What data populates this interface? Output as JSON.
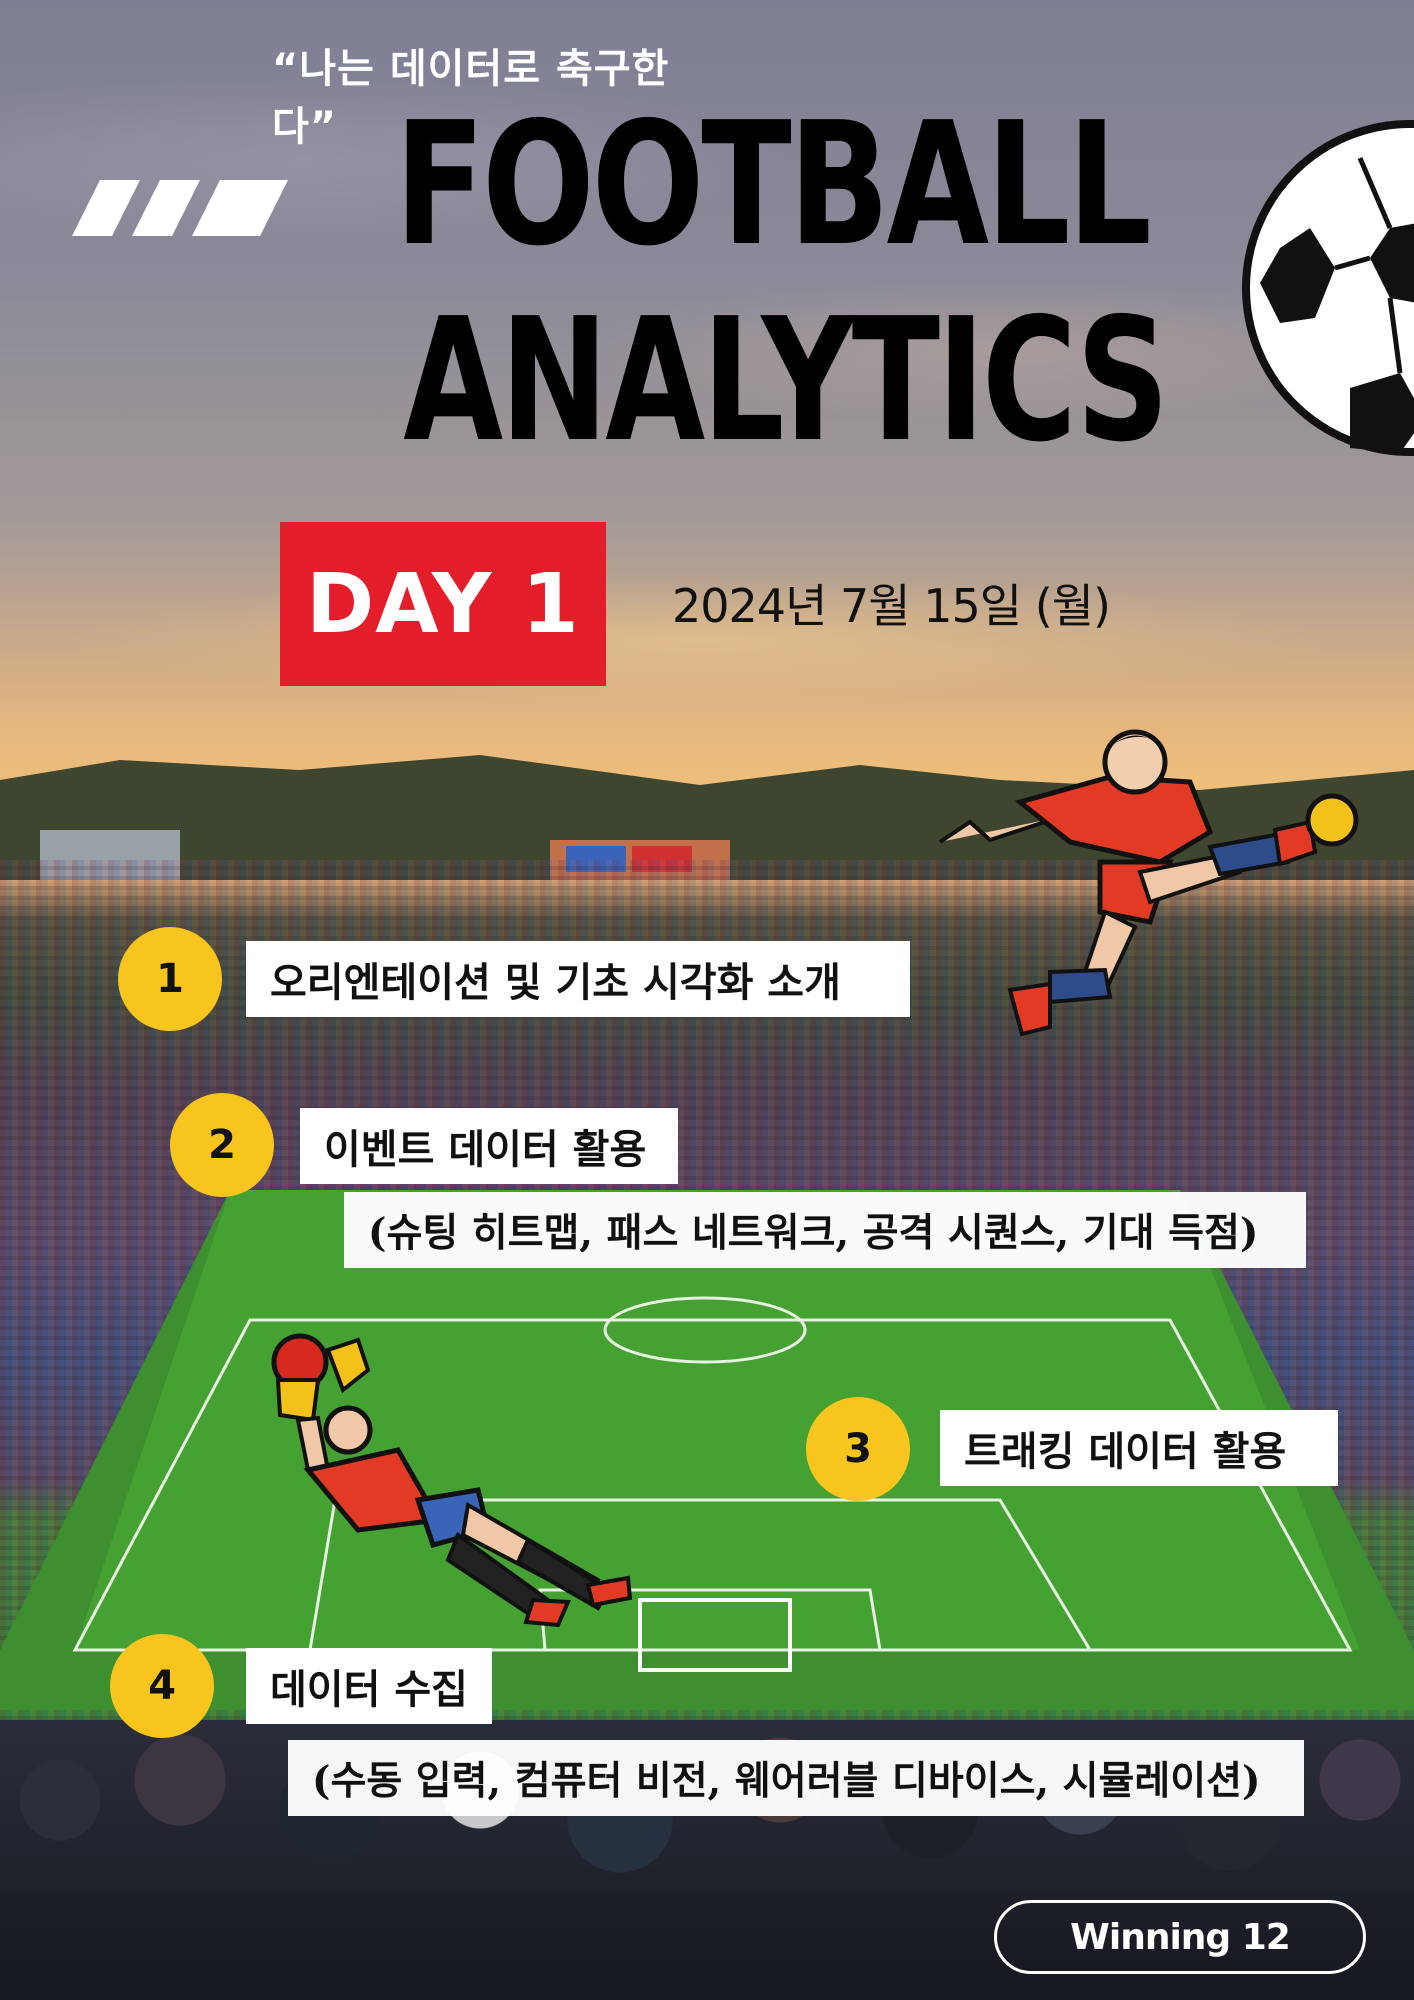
{
  "poster": {
    "tagline": "“나는 데이터로 축구한다”",
    "title_line1": "FOOTBALL",
    "title_line2": "ANALYTICS",
    "day_label": "DAY 1",
    "date": "2024년 7월 15일 (월)",
    "brand": "Winning 12"
  },
  "agenda": [
    {
      "number": "1",
      "title": "오리엔테이션 및 기초 시각화 소개"
    },
    {
      "number": "2",
      "title": "이벤트 데이터 활용",
      "detail": "(슈팅 히트맵, 패스 네트워크, 공격 시퀀스, 기대 득점)"
    },
    {
      "number": "3",
      "title": "트래킹 데이터 활용"
    },
    {
      "number": "4",
      "title": "데이터 수집",
      "detail": "(수동 입력, 컴퓨터 비전, 웨어러블 디바이스, 시뮬레이션)"
    }
  ],
  "colors": {
    "day_badge": "#e31e2a",
    "number_circle": "#f7c51d",
    "box_background": "#ffffff",
    "title_text": "#000000"
  },
  "icons": [
    "stripes-decoration",
    "soccer-ball-icon",
    "kicking-player-illustration",
    "goalkeeper-illustration"
  ]
}
